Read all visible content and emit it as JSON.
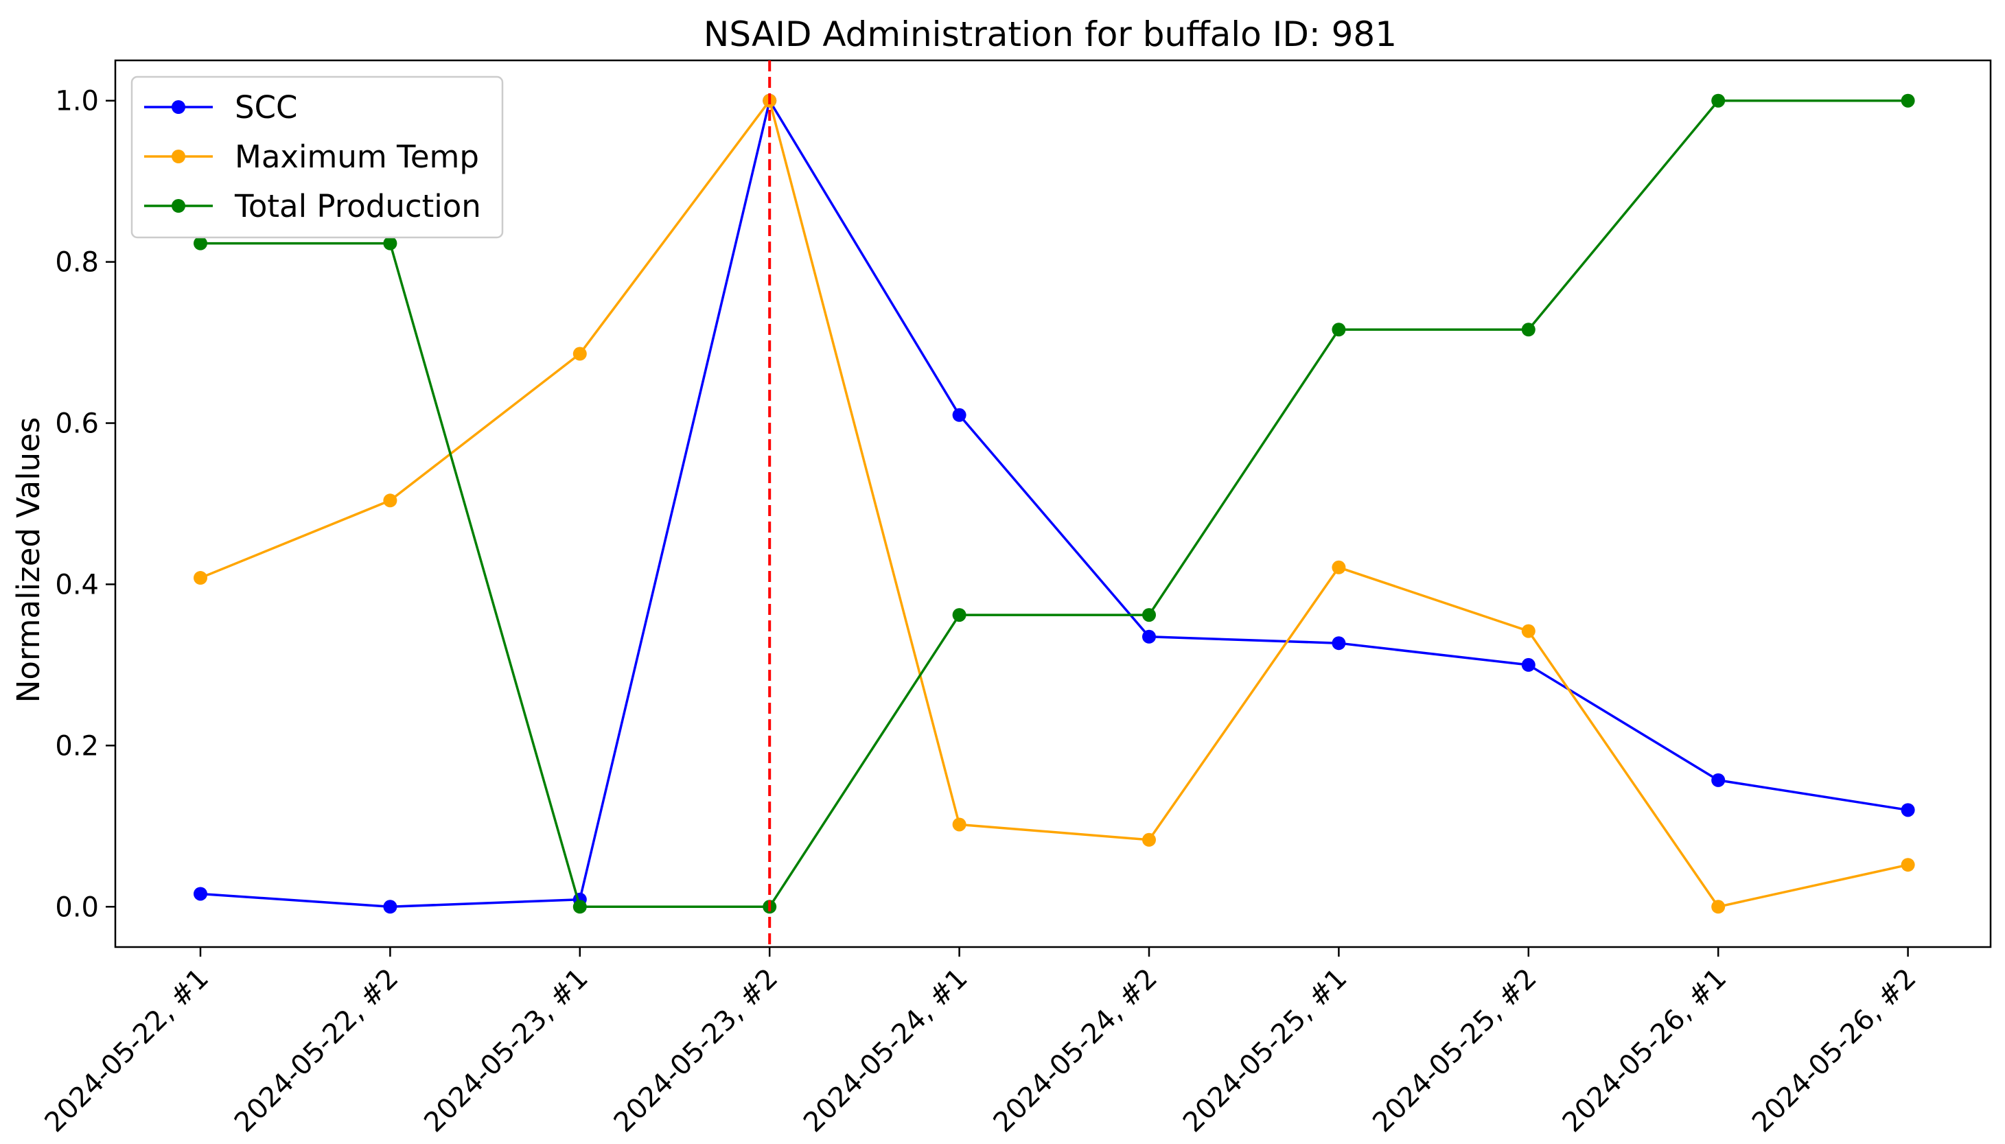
{
  "chart_data": {
    "type": "line",
    "title": "NSAID Administration for buffalo ID: 981",
    "xlabel": "",
    "ylabel": "Normalized Values",
    "categories": [
      "2024-05-22, #1",
      "2024-05-22, #2",
      "2024-05-23, #1",
      "2024-05-23, #2",
      "2024-05-24, #1",
      "2024-05-24, #2",
      "2024-05-25, #1",
      "2024-05-25, #2",
      "2024-05-26, #1",
      "2024-05-26, #2"
    ],
    "ylim": [
      -0.05,
      1.05
    ],
    "yticks": [
      0.0,
      0.2,
      0.4,
      0.6,
      0.8,
      1.0
    ],
    "ytick_labels": [
      "0.0",
      "0.2",
      "0.4",
      "0.6",
      "0.8",
      "1.0"
    ],
    "grid": false,
    "legend_position": "top-left",
    "series": [
      {
        "name": "SCC",
        "color": "#0000ff",
        "values": [
          0.016,
          0.0,
          0.009,
          1.0,
          0.61,
          0.335,
          0.327,
          0.3,
          0.157,
          0.12
        ]
      },
      {
        "name": "Maximum Temp",
        "color": "#ffa500",
        "values": [
          0.408,
          0.504,
          0.686,
          1.0,
          0.102,
          0.083,
          0.421,
          0.342,
          0.0,
          0.052
        ]
      },
      {
        "name": "Total Production",
        "color": "#008000",
        "values": [
          0.823,
          0.823,
          0.0,
          0.0,
          0.362,
          0.362,
          0.716,
          0.716,
          1.0,
          1.0
        ]
      }
    ],
    "annotations": [
      {
        "type": "vline",
        "category_index": 3,
        "color": "#ff0000",
        "style": "dashed"
      }
    ]
  }
}
